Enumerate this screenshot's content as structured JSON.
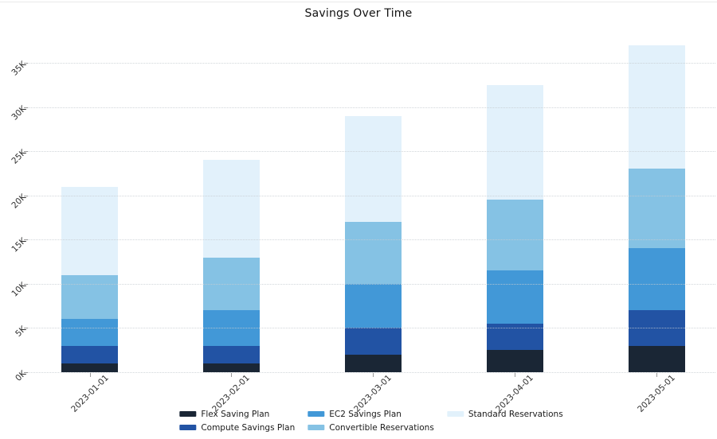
{
  "title": "Savings Over Time",
  "chart_data": {
    "type": "bar",
    "stacked": true,
    "title": "Savings Over Time",
    "xlabel": "",
    "ylabel": "",
    "categories": [
      "2023-01-01",
      "2023-02-01",
      "2023-03-01",
      "2023-04-01",
      "2023-05-01"
    ],
    "series": [
      {
        "name": "Flex Saving Plan",
        "color": "#1a2635",
        "values": [
          1000,
          1000,
          2000,
          2500,
          3000
        ]
      },
      {
        "name": "Compute Savings Plan",
        "color": "#2253a4",
        "values": [
          2000,
          2000,
          3000,
          3000,
          4000
        ]
      },
      {
        "name": "EC2 Savings Plan",
        "color": "#4298d7",
        "values": [
          3000,
          4000,
          5000,
          6000,
          7000
        ]
      },
      {
        "name": "Convertible Reservations",
        "color": "#85c2e4",
        "values": [
          5000,
          6000,
          7000,
          8000,
          9000
        ]
      },
      {
        "name": "Standard Reservations",
        "color": "#e2f1fb",
        "values": [
          10000,
          11000,
          12000,
          13000,
          14000
        ]
      }
    ],
    "stack_totals": [
      21000,
      24000,
      29000,
      32500,
      37000
    ],
    "y_ticks": [
      "0K",
      "5K",
      "10K",
      "15K",
      "20K",
      "25K",
      "30K",
      "35K"
    ],
    "y_tick_values": [
      0,
      5000,
      10000,
      15000,
      20000,
      25000,
      30000,
      35000
    ],
    "ylim": [
      0,
      38500
    ],
    "grid": "horizontal-dotted",
    "legend_position": "bottom",
    "legend_columns": 3
  }
}
